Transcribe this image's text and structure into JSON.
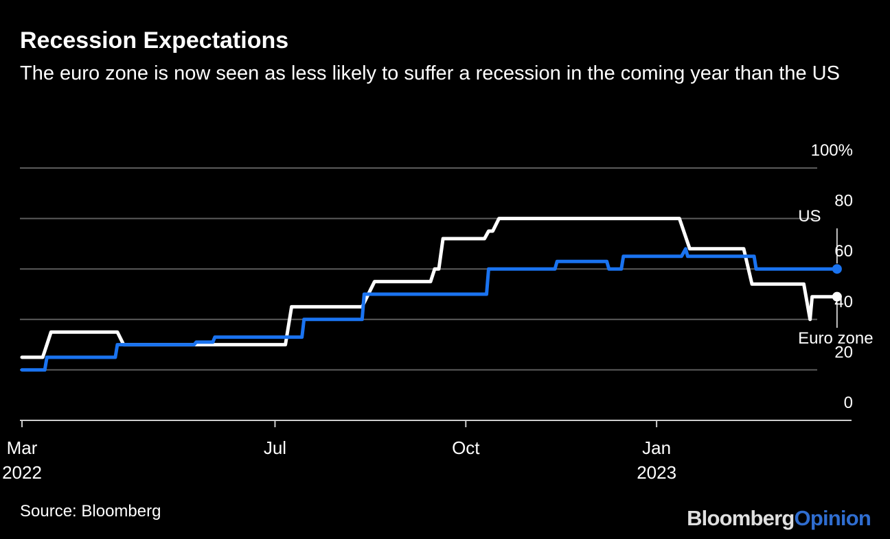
{
  "header": {
    "title": "Recession Expectations",
    "subtitle": "The euro zone is now seen as less likely to suffer a recession in the coming year than the US"
  },
  "footer": {
    "source": "Source: Bloomberg",
    "brand_part1": "Bloomberg",
    "brand_part2": "Opinion"
  },
  "colors": {
    "background": "#000000",
    "us_line": "#1a73f0",
    "euro_line": "#ffffff",
    "grid": "#5c5c5c"
  },
  "chart_data": {
    "type": "line",
    "title": "Recession Expectations",
    "xlabel": "",
    "ylabel": "",
    "ylim": [
      0,
      100
    ],
    "xlim": [
      "2022-02-28",
      "2023-04-05"
    ],
    "y_ticks": [
      {
        "value": 0,
        "label": "0"
      },
      {
        "value": 20,
        "label": "20"
      },
      {
        "value": 40,
        "label": "40"
      },
      {
        "value": 60,
        "label": "60"
      },
      {
        "value": 80,
        "label": "80"
      },
      {
        "value": 100,
        "label": "100%"
      }
    ],
    "x_ticks": [
      {
        "date": "2022-03-01",
        "label": "Mar",
        "sublabel": "2022"
      },
      {
        "date": "2022-07-01",
        "label": "Jul",
        "sublabel": ""
      },
      {
        "date": "2022-10-01",
        "label": "Oct",
        "sublabel": ""
      },
      {
        "date": "2023-01-01",
        "label": "Jan",
        "sublabel": "2023"
      }
    ],
    "grid": true,
    "series": [
      {
        "name": "US",
        "label": "US",
        "points": [
          [
            "2022-03-01",
            20
          ],
          [
            "2022-03-12",
            20
          ],
          [
            "2022-03-13",
            25
          ],
          [
            "2022-04-15",
            25
          ],
          [
            "2022-04-16",
            30
          ],
          [
            "2022-05-23",
            30
          ],
          [
            "2022-05-24",
            31
          ],
          [
            "2022-06-01",
            31
          ],
          [
            "2022-06-02",
            33
          ],
          [
            "2022-07-14",
            33
          ],
          [
            "2022-07-15",
            40
          ],
          [
            "2022-08-12",
            40
          ],
          [
            "2022-08-13",
            50
          ],
          [
            "2022-10-11",
            50
          ],
          [
            "2022-10-12",
            60
          ],
          [
            "2022-11-13",
            60
          ],
          [
            "2022-11-14",
            63
          ],
          [
            "2022-12-08",
            63
          ],
          [
            "2022-12-09",
            60
          ],
          [
            "2022-12-15",
            60
          ],
          [
            "2022-12-16",
            65
          ],
          [
            "2023-01-13",
            65
          ],
          [
            "2023-01-15",
            68
          ],
          [
            "2023-01-16",
            65
          ],
          [
            "2023-02-17",
            65
          ],
          [
            "2023-02-18",
            60
          ],
          [
            "2023-03-29",
            60
          ]
        ]
      },
      {
        "name": "Euro zone",
        "label": "Euro zone",
        "points": [
          [
            "2022-03-01",
            25
          ],
          [
            "2022-03-11",
            25
          ],
          [
            "2022-03-15",
            35
          ],
          [
            "2022-04-16",
            35
          ],
          [
            "2022-04-19",
            30
          ],
          [
            "2022-07-06",
            30
          ],
          [
            "2022-07-09",
            45
          ],
          [
            "2022-08-12",
            45
          ],
          [
            "2022-08-18",
            55
          ],
          [
            "2022-09-14",
            55
          ],
          [
            "2022-09-16",
            60
          ],
          [
            "2022-09-18",
            60
          ],
          [
            "2022-09-20",
            72
          ],
          [
            "2022-10-10",
            72
          ],
          [
            "2022-10-12",
            75
          ],
          [
            "2022-10-14",
            75
          ],
          [
            "2022-10-17",
            80
          ],
          [
            "2023-01-12",
            80
          ],
          [
            "2023-01-17",
            68
          ],
          [
            "2023-02-12",
            68
          ],
          [
            "2023-02-16",
            54
          ],
          [
            "2023-03-13",
            54
          ],
          [
            "2023-03-16",
            40
          ],
          [
            "2023-03-17",
            49
          ],
          [
            "2023-03-29",
            49
          ]
        ]
      }
    ]
  }
}
